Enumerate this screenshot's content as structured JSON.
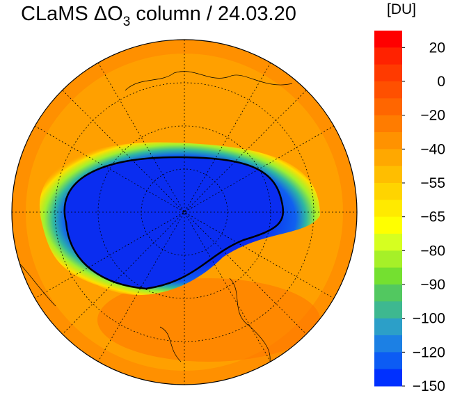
{
  "title": {
    "prefix": "CLaMS ΔO",
    "subscript": "3",
    "suffix": " column / 24.03.20"
  },
  "colorbar": {
    "unit": "[DU]",
    "ticks": [
      {
        "value": 20,
        "label": "20"
      },
      {
        "value": 0,
        "label": "0"
      },
      {
        "value": -20,
        "label": "−20"
      },
      {
        "value": -40,
        "label": "−40"
      },
      {
        "value": -55,
        "label": "−55"
      },
      {
        "value": -65,
        "label": "−65"
      },
      {
        "value": -80,
        "label": "−80"
      },
      {
        "value": -90,
        "label": "−90"
      },
      {
        "value": -100,
        "label": "−100"
      },
      {
        "value": -120,
        "label": "−120"
      },
      {
        "value": -150,
        "label": "−150"
      }
    ],
    "colors": [
      "#ff0000",
      "#ff2200",
      "#ff3a00",
      "#ff5000",
      "#ff6600",
      "#ff7c00",
      "#ff9200",
      "#ffa800",
      "#ffbe00",
      "#ffd400",
      "#ffea00",
      "#ffff00",
      "#d6ff20",
      "#a6f028",
      "#74e030",
      "#52c860",
      "#3eb890",
      "#2c9fc8",
      "#1c80e4",
      "#0c5cf4",
      "#0030ff"
    ]
  }
}
